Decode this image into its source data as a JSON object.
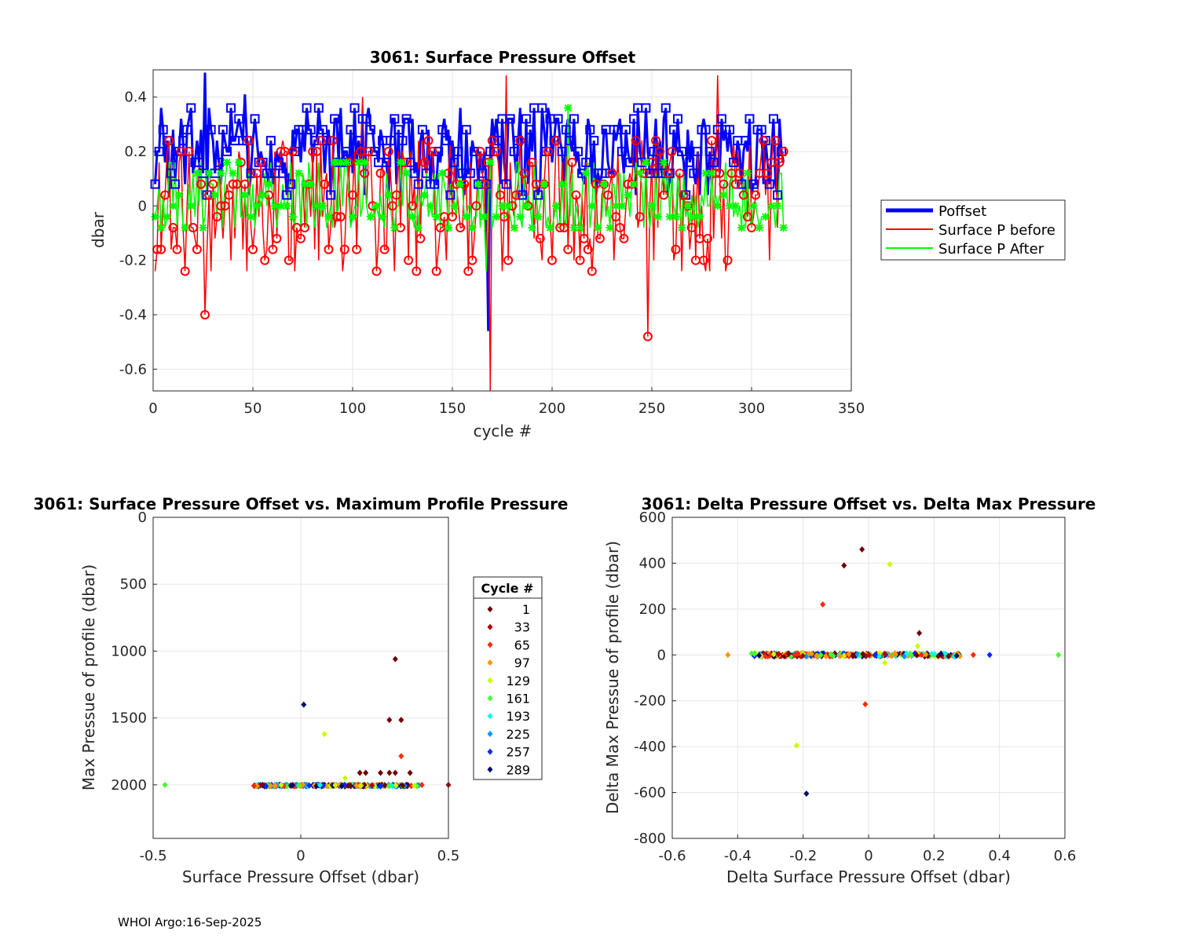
{
  "footer": "WHOI Argo:16-Sep-2025",
  "chart_data": [
    {
      "type": "line",
      "title": "3061: Surface Pressure Offset",
      "xlabel": "cycle #",
      "ylabel": "dbar",
      "xlim": [
        0,
        350
      ],
      "ylim": [
        -0.68,
        0.5
      ],
      "xticks": [
        0,
        50,
        100,
        150,
        200,
        250,
        300,
        350
      ],
      "yticks": [
        -0.6,
        -0.4,
        -0.2,
        0,
        0.2,
        0.4
      ],
      "ytick_labels": [
        "-0.6",
        "-0.4",
        "-0.2",
        "0",
        "0.2",
        "0.4"
      ],
      "grid": true,
      "legend_position": "outside-right",
      "series": [
        {
          "name": "Poffset",
          "color": "#0000ff",
          "marker": "square",
          "approx_range": [
            0.0,
            0.38
          ],
          "notable": [
            {
              "x": 25,
              "y": 0.49
            },
            {
              "x": 167,
              "y": -0.46
            },
            {
              "x": 100,
              "y": 0.36
            },
            {
              "x": 45,
              "y": 0.41
            }
          ]
        },
        {
          "name": "Surface P before",
          "color": "#ff0000",
          "marker": "circle",
          "approx_range": [
            -0.32,
            0.28
          ],
          "notable": [
            {
              "x": 168,
              "y": -0.68
            },
            {
              "x": 176,
              "y": 0.48
            },
            {
              "x": 282,
              "y": 0.48
            },
            {
              "x": 247,
              "y": -0.48
            },
            {
              "x": 25,
              "y": -0.4
            },
            {
              "x": 104,
              "y": 0.4
            }
          ]
        },
        {
          "name": "Surface P After",
          "color": "#00ff00",
          "marker": "star",
          "approx_range": [
            -0.12,
            0.2
          ],
          "notable": [
            {
              "x": 166,
              "y": -0.24
            },
            {
              "x": 207,
              "y": 0.36
            }
          ]
        }
      ],
      "n_cycles": 316
    },
    {
      "type": "scatter",
      "title": "3061: Surface Pressure Offset vs. Maximum Profile Pressure",
      "xlabel": "Surface Pressure Offset (dbar)",
      "ylabel": "Max Pressue of profile (dbar)",
      "xlim": [
        -0.5,
        0.5
      ],
      "ylim": [
        0,
        2400
      ],
      "y_reversed": true,
      "xticks": [
        -0.5,
        0,
        0.5
      ],
      "xtick_labels": [
        "-0.5",
        "0",
        "0.5"
      ],
      "yticks": [
        0,
        500,
        1000,
        1500,
        2000
      ],
      "ytick_labels": [
        "0",
        "500",
        "1000",
        "1500",
        "2000"
      ],
      "legend_title": "Cycle #",
      "legend": [
        {
          "label": "1",
          "color": "#6e0000"
        },
        {
          "label": "33",
          "color": "#b40000"
        },
        {
          "label": "65",
          "color": "#ff2800"
        },
        {
          "label": "97",
          "color": "#ff9600"
        },
        {
          "label": "129",
          "color": "#c8ff00"
        },
        {
          "label": "161",
          "color": "#46ff2d"
        },
        {
          "label": "193",
          "color": "#00ffe6"
        },
        {
          "label": "225",
          "color": "#0096ff"
        },
        {
          "label": "257",
          "color": "#0028ff"
        },
        {
          "label": "289",
          "color": "#000a6e"
        }
      ],
      "points": [
        {
          "x": 0.32,
          "y": 1060,
          "c": "#6e0000"
        },
        {
          "x": 0.3,
          "y": 1515,
          "c": "#6e0000"
        },
        {
          "x": 0.34,
          "y": 1515,
          "c": "#6e0000"
        },
        {
          "x": 0.01,
          "y": 1400,
          "c": "#000a6e"
        },
        {
          "x": 0.08,
          "y": 1620,
          "c": "#c8ff00"
        },
        {
          "x": 0.34,
          "y": 1785,
          "c": "#ff2800"
        },
        {
          "x": 0.2,
          "y": 1910,
          "c": "#6e0000"
        },
        {
          "x": 0.22,
          "y": 1910,
          "c": "#6e0000"
        },
        {
          "x": 0.27,
          "y": 1910,
          "c": "#6e0000"
        },
        {
          "x": 0.3,
          "y": 1910,
          "c": "#6e0000"
        },
        {
          "x": 0.32,
          "y": 1910,
          "c": "#6e0000"
        },
        {
          "x": 0.37,
          "y": 1910,
          "c": "#6e0000"
        },
        {
          "x": 0.15,
          "y": 1950,
          "c": "#c8ff00"
        },
        {
          "x": -0.46,
          "y": 2000,
          "c": "#46ff2d"
        },
        {
          "x": 0.41,
          "y": 2000,
          "c": "#ff2800"
        },
        {
          "x": 0.5,
          "y": 2000,
          "c": "#b40000"
        }
      ],
      "band": {
        "x_from": -0.16,
        "x_to": 0.4,
        "y": 2005,
        "note": "dense band of points near 2000 dbar across all cycle colours"
      }
    },
    {
      "type": "scatter",
      "title": "3061: Delta Pressure Offset vs. Delta Max Pressure",
      "xlabel": "Delta Surface Pressure Offset (dbar)",
      "ylabel": "Delta Max Pressue of profile (dbar)",
      "xlim": [
        -0.6,
        0.6
      ],
      "ylim": [
        -800,
        600
      ],
      "xticks": [
        -0.6,
        -0.4,
        -0.2,
        0,
        0.2,
        0.4,
        0.6
      ],
      "xtick_labels": [
        "-0.6",
        "-0.4",
        "-0.2",
        "0",
        "0.2",
        "0.4",
        "0.6"
      ],
      "yticks": [
        -800,
        -600,
        -400,
        -200,
        0,
        200,
        400,
        600
      ],
      "ytick_labels": [
        "-800",
        "-600",
        "-400",
        "-200",
        "0",
        "200",
        "400",
        "600"
      ],
      "points": [
        {
          "x": -0.02,
          "y": 460,
          "c": "#6e0000"
        },
        {
          "x": -0.075,
          "y": 390,
          "c": "#6e0000"
        },
        {
          "x": 0.065,
          "y": 395,
          "c": "#c8ff00"
        },
        {
          "x": -0.14,
          "y": 220,
          "c": "#ff2800"
        },
        {
          "x": 0.155,
          "y": 95,
          "c": "#6e0000"
        },
        {
          "x": 0.15,
          "y": 38,
          "c": "#c8ff00"
        },
        {
          "x": 0.05,
          "y": -35,
          "c": "#c8ff00"
        },
        {
          "x": -0.01,
          "y": -215,
          "c": "#ff2800"
        },
        {
          "x": -0.22,
          "y": -395,
          "c": "#c8ff00"
        },
        {
          "x": -0.19,
          "y": -605,
          "c": "#000a6e"
        },
        {
          "x": -0.43,
          "y": 0,
          "c": "#ff9600"
        },
        {
          "x": 0.58,
          "y": 0,
          "c": "#46ff2d"
        },
        {
          "x": 0.32,
          "y": 0,
          "c": "#ff2800"
        },
        {
          "x": 0.37,
          "y": 0,
          "c": "#0028ff"
        }
      ],
      "band": {
        "x_from": -0.36,
        "x_to": 0.28,
        "y": 0,
        "note": "dense band of points near 0 across all cycle colours"
      }
    }
  ]
}
